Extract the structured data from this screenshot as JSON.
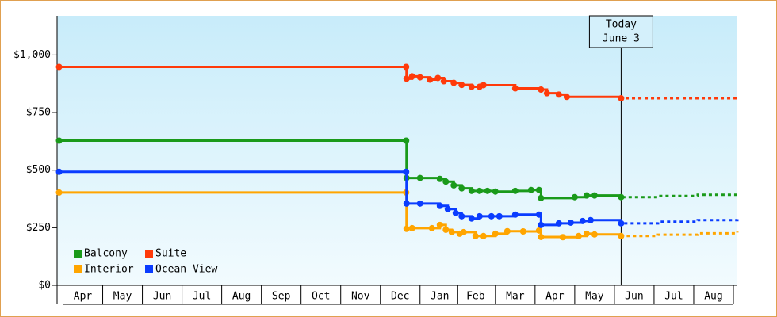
{
  "chart_data": {
    "type": "step-line",
    "xlim": [
      -0.15,
      17
    ],
    "ylim": [
      0,
      1170
    ],
    "yticks": [
      {
        "value": 0,
        "label": "$0"
      },
      {
        "value": 250,
        "label": "$250"
      },
      {
        "value": 500,
        "label": "$500"
      },
      {
        "value": 750,
        "label": "$750"
      },
      {
        "value": 1000,
        "label": "$1,000"
      }
    ],
    "xticks": [
      {
        "value": 0.5,
        "label": "Apr"
      },
      {
        "value": 1.5,
        "label": "May"
      },
      {
        "value": 2.5,
        "label": "Jun"
      },
      {
        "value": 3.5,
        "label": "Jul"
      },
      {
        "value": 4.5,
        "label": "Aug"
      },
      {
        "value": 5.5,
        "label": "Sep"
      },
      {
        "value": 6.5,
        "label": "Oct"
      },
      {
        "value": 7.5,
        "label": "Nov"
      },
      {
        "value": 8.5,
        "label": "Dec"
      },
      {
        "value": 9.5,
        "label": "Jan"
      },
      {
        "value": 10.4,
        "label": "Feb"
      },
      {
        "value": 11.4,
        "label": "Mar"
      },
      {
        "value": 12.4,
        "label": "Apr"
      },
      {
        "value": 13.4,
        "label": "May"
      },
      {
        "value": 14.4,
        "label": "Jun"
      },
      {
        "value": 15.4,
        "label": "Jul"
      },
      {
        "value": 16.4,
        "label": "Aug"
      }
    ],
    "annotation": {
      "text": [
        "Today",
        "June 3"
      ],
      "x": 14.07
    },
    "legend": "lower left",
    "series": [
      {
        "name": "Balcony",
        "color": "#1a9a1a",
        "x": [
          -0.1,
          8.65,
          8.66,
          9.0,
          9.5,
          9.65,
          9.85,
          10.05,
          10.3,
          10.5,
          10.7,
          10.9,
          11.4,
          11.8,
          12.0,
          12.05,
          12.9,
          13.2,
          13.4,
          14.07,
          15,
          16,
          17
        ],
        "values": [
          628,
          628,
          466,
          466,
          462,
          450,
          434,
          421,
          410,
          410,
          410,
          407,
          410,
          414,
          414,
          379,
          383,
          390,
          390,
          383,
          388,
          393,
          397
        ]
      },
      {
        "name": "Suite",
        "color": "#ff3a0a",
        "x": [
          -0.1,
          8.65,
          8.66,
          8.8,
          9.0,
          9.25,
          9.45,
          9.6,
          9.85,
          10.05,
          10.3,
          10.5,
          10.6,
          11.4,
          12.05,
          12.2,
          12.5,
          12.7,
          14.07,
          15,
          17
        ],
        "values": [
          948,
          948,
          897,
          907,
          903,
          893,
          900,
          886,
          879,
          870,
          862,
          862,
          869,
          855,
          850,
          834,
          828,
          818,
          812,
          812,
          812
        ]
      },
      {
        "name": "Interior",
        "color": "#ffa500",
        "x": [
          -0.1,
          8.65,
          8.66,
          8.8,
          9.3,
          9.5,
          9.65,
          9.8,
          10.0,
          10.1,
          10.4,
          10.6,
          10.9,
          11.2,
          11.6,
          12.0,
          12.05,
          12.6,
          13.0,
          13.2,
          13.4,
          14.07,
          15,
          16,
          17
        ],
        "values": [
          403,
          403,
          245,
          248,
          248,
          262,
          241,
          231,
          224,
          231,
          214,
          214,
          224,
          235,
          234,
          238,
          210,
          209,
          214,
          224,
          221,
          214,
          220,
          226,
          233
        ]
      },
      {
        "name": "Ocean View",
        "color": "#0a3cff",
        "x": [
          -0.1,
          8.65,
          8.66,
          9.0,
          9.5,
          9.7,
          9.9,
          10.05,
          10.3,
          10.5,
          10.8,
          11.0,
          11.4,
          12.0,
          12.05,
          12.5,
          12.8,
          13.1,
          13.3,
          14.07,
          15,
          16,
          17
        ],
        "values": [
          493,
          493,
          355,
          355,
          345,
          331,
          314,
          300,
          290,
          300,
          300,
          300,
          307,
          307,
          262,
          269,
          272,
          279,
          283,
          269,
          276,
          283,
          290
        ]
      }
    ]
  }
}
